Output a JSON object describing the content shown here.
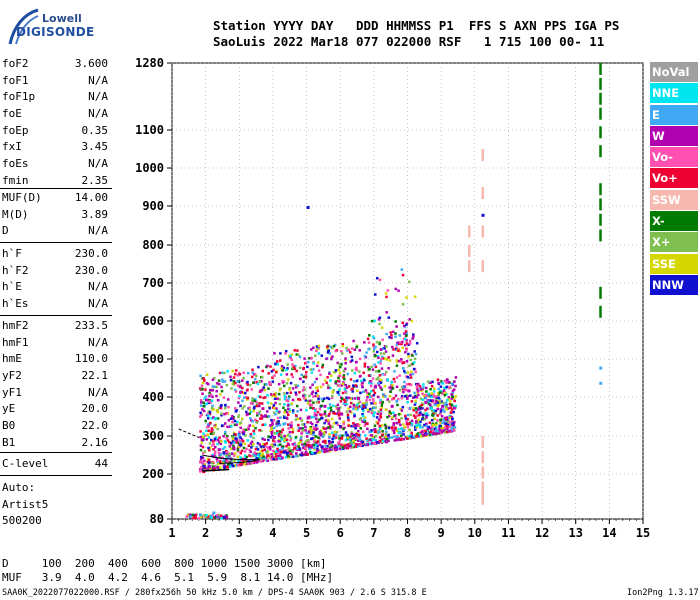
{
  "logo": {
    "line1": "Lowell",
    "line2": "DIGISONDE"
  },
  "header": {
    "columns_line": "Station YYYY DAY   DDD HHMMSS P1  FFS S AXN PPS IGA PS",
    "values_line": "SaoLuis 2022 Mar18 077 022000 RSF   1 715 100 00- 11"
  },
  "params": {
    "group1": [
      {
        "k": "foF2",
        "v": "3.600"
      },
      {
        "k": "foF1",
        "v": "N/A"
      },
      {
        "k": "foF1p",
        "v": "N/A"
      },
      {
        "k": "foE",
        "v": "N/A"
      },
      {
        "k": "foEp",
        "v": "0.35"
      },
      {
        "k": "fxI",
        "v": "3.45"
      },
      {
        "k": "foEs",
        "v": "N/A"
      },
      {
        "k": "fmin",
        "v": "2.35"
      }
    ],
    "group2": [
      {
        "k": "MUF(D)",
        "v": "14.00"
      },
      {
        "k": "M(D)",
        "v": "3.89"
      },
      {
        "k": "D",
        "v": "N/A"
      }
    ],
    "group3": [
      {
        "k": "h`F",
        "v": "230.0"
      },
      {
        "k": "h`F2",
        "v": "230.0"
      },
      {
        "k": "h`E",
        "v": "N/A"
      },
      {
        "k": "h`Es",
        "v": "N/A"
      }
    ],
    "group4": [
      {
        "k": "hmF2",
        "v": "233.5"
      },
      {
        "k": "hmF1",
        "v": "N/A"
      },
      {
        "k": "hmE",
        "v": "110.0"
      },
      {
        "k": "yF2",
        "v": "22.1"
      },
      {
        "k": "yF1",
        "v": "N/A"
      },
      {
        "k": "yE",
        "v": "20.0"
      },
      {
        "k": "B0",
        "v": "22.0"
      },
      {
        "k": "B1",
        "v": "2.16"
      }
    ],
    "clevel": {
      "k": "C-level",
      "v": "44"
    },
    "auto": [
      "Auto:",
      "Artist5",
      "500200"
    ]
  },
  "legend": [
    {
      "label": "NoVal",
      "bg": "#a0a0a0",
      "fg": "#ffffff"
    },
    {
      "label": "NNE",
      "bg": "#00e6f0",
      "fg": "#ffffff"
    },
    {
      "label": "E",
      "bg": "#3fa9f5",
      "fg": "#ffffff"
    },
    {
      "label": "W",
      "bg": "#b000b0",
      "fg": "#ffffff"
    },
    {
      "label": "Vo-",
      "bg": "#ff4fb0",
      "fg": "#ffffff"
    },
    {
      "label": "Vo+",
      "bg": "#ee0033",
      "fg": "#ffffff"
    },
    {
      "label": "SSW",
      "bg": "#f7b8b0",
      "fg": "#ffffff"
    },
    {
      "label": "X-",
      "bg": "#007a00",
      "fg": "#ffffff"
    },
    {
      "label": "X+",
      "bg": "#7fbf50",
      "fg": "#ffffff"
    },
    {
      "label": "SSE",
      "bg": "#d6d600",
      "fg": "#ffffff"
    },
    {
      "label": "NNW",
      "bg": "#1010d0",
      "fg": "#ffffff"
    }
  ],
  "bottom": {
    "d_line": "D     100  200  400  600  800 1000 1500 3000 [km]",
    "muf_line": "MUF   3.9  4.0  4.2  4.6  5.1  5.9  8.1 14.0 [MHz]"
  },
  "footer": {
    "left": "SAA0K_2022077022000.RSF / 280fx256h 50 kHz 5.0 km / DPS-4 SAA0K 903 / 2.6 S 315.8 E",
    "right": "Ion2Png 1.3.17"
  },
  "chart_data": {
    "type": "scatter",
    "title": "",
    "xlabel": "",
    "ylabel": "",
    "x_ticks": [
      "1",
      "2",
      "3",
      "4",
      "5",
      "6",
      "7",
      "8",
      "9",
      "10",
      "11",
      "12",
      "13",
      "14",
      "15"
    ],
    "y_ticks": [
      "80",
      "200",
      "300",
      "400",
      "500",
      "600",
      "700",
      "800",
      "900",
      "1000",
      "1100",
      "1280"
    ],
    "xlim": [
      1,
      15
    ],
    "y_scale": "nonlinear (virtual height, km)",
    "ylim": [
      80,
      1280
    ],
    "grid": "dotted",
    "legend_position": "right",
    "series": [
      {
        "name": "X-",
        "points": [
          [
            13.7,
            1280
          ],
          [
            13.7,
            1240
          ],
          [
            13.7,
            1200
          ],
          [
            13.7,
            1160
          ],
          [
            13.7,
            1110
          ],
          [
            13.7,
            1060
          ],
          [
            13.7,
            960
          ],
          [
            13.7,
            920
          ],
          [
            13.7,
            880
          ],
          [
            13.7,
            840
          ],
          [
            13.7,
            690
          ],
          [
            13.7,
            640
          ]
        ]
      },
      {
        "name": "SSW",
        "points": [
          [
            9.8,
            850
          ],
          [
            9.8,
            800
          ],
          [
            9.8,
            760
          ],
          [
            10.2,
            1050
          ],
          [
            10.2,
            950
          ],
          [
            10.2,
            850
          ],
          [
            10.2,
            760
          ],
          [
            10.2,
            300
          ],
          [
            10.2,
            260
          ],
          [
            10.2,
            220
          ],
          [
            10.2,
            180
          ],
          [
            10.2,
            150
          ]
        ]
      },
      {
        "name": "Vo+",
        "points": [
          [
            1.9,
            210
          ],
          [
            2.2,
            215
          ],
          [
            2.6,
            222
          ],
          [
            3.0,
            232
          ],
          [
            3.4,
            240
          ],
          [
            3.8,
            252
          ],
          [
            4.2,
            262
          ],
          [
            4.6,
            272
          ],
          [
            5.0,
            280
          ],
          [
            5.5,
            290
          ],
          [
            6.0,
            298
          ],
          [
            6.5,
            306
          ],
          [
            7.0,
            315
          ],
          [
            7.5,
            325
          ],
          [
            8.0,
            335
          ]
        ]
      },
      {
        "name": "W",
        "points": [
          [
            2.2,
            250
          ],
          [
            2.8,
            270
          ],
          [
            3.2,
            360
          ],
          [
            3.6,
            420
          ],
          [
            4.0,
            300
          ],
          [
            4.5,
            330
          ],
          [
            5.0,
            350
          ],
          [
            5.5,
            380
          ],
          [
            6.0,
            360
          ],
          [
            6.5,
            400
          ],
          [
            7.0,
            430
          ],
          [
            7.5,
            380
          ],
          [
            8.0,
            420
          ],
          [
            8.5,
            390
          ],
          [
            9.0,
            380
          ]
        ]
      },
      {
        "name": "E",
        "points": [
          [
            1.5,
            90
          ],
          [
            1.8,
            95
          ],
          [
            2.2,
            100
          ],
          [
            13.7,
            480
          ],
          [
            13.7,
            440
          ]
        ]
      },
      {
        "name": "NNW",
        "points": [
          [
            2.5,
            260
          ],
          [
            3.0,
            280
          ],
          [
            5.0,
            900
          ],
          [
            10.2,
            880
          ]
        ]
      }
    ]
  }
}
